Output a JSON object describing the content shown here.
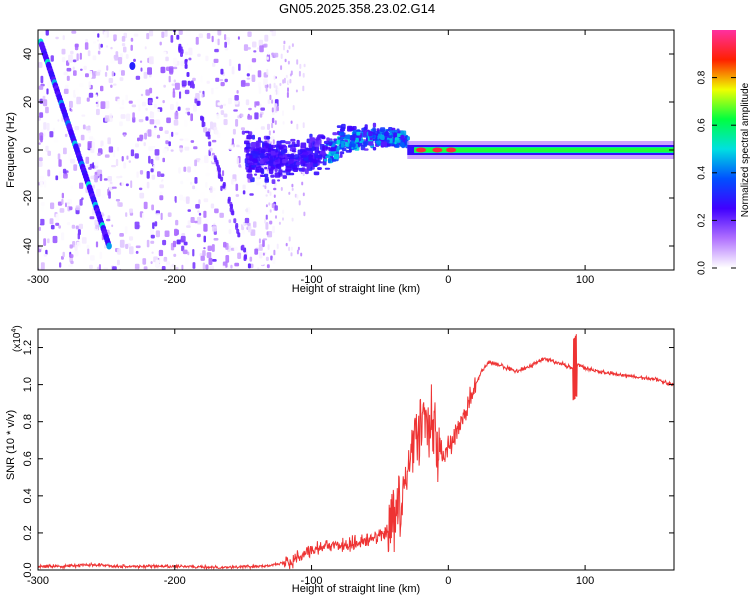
{
  "title": "GN05.2025.358.23.02.G14",
  "chart_data": [
    {
      "type": "heatmap",
      "name": "spectrogram",
      "xlabel": "Height of straight line (km)",
      "ylabel": "Frequency (Hz)",
      "xlim": [
        -300,
        165
      ],
      "ylim": [
        -50,
        50
      ],
      "x_ticks": [
        -300,
        -200,
        -100,
        0,
        100
      ],
      "x_tick_labels": [
        "-300",
        "-200",
        "-100",
        "0",
        "100"
      ],
      "y_ticks": [
        -40,
        -20,
        0,
        20,
        40
      ],
      "y_tick_labels": [
        "-40",
        "-20",
        "0",
        "20",
        "40"
      ],
      "colorbar": {
        "label": "Normalized spectral amplitude",
        "range": [
          0,
          1
        ],
        "ticks": [
          0.0,
          0.2,
          0.4,
          0.6,
          0.8
        ],
        "tick_labels": [
          "0.0",
          "0.2",
          "0.4",
          "0.6",
          "0.8"
        ],
        "colors": [
          "#ffffff",
          "#b070ff",
          "#4000ff",
          "#0050ff",
          "#00e0e0",
          "#00ff40",
          "#f0ff00",
          "#ff2000",
          "#ff30a0"
        ]
      },
      "features": {
        "noise_region_x": [
          -300,
          -130
        ],
        "diagonal_trace": {
          "from": [
            -298,
            45
          ],
          "to": [
            -248,
            -40
          ]
        },
        "faint_diagonal_trace": {
          "from": [
            -200,
            50
          ],
          "to": [
            -145,
            -50
          ]
        },
        "converging_band_x": [
          -150,
          -30
        ],
        "narrow_line_x": [
          -30,
          165
        ],
        "narrow_line_freq": 0
      }
    },
    {
      "type": "line",
      "name": "snr",
      "xlabel": "Height of straight line (km)",
      "ylabel": "SNR (10 * v/v)",
      "y_exponent_label": "(x10",
      "y_exponent": "4",
      "xlim": [
        -300,
        165
      ],
      "ylim": [
        0.0,
        1.3
      ],
      "x_ticks": [
        -300,
        -200,
        -100,
        0,
        100
      ],
      "x_tick_labels": [
        "-300",
        "-200",
        "-100",
        "0",
        "100"
      ],
      "y_ticks": [
        0.0,
        0.2,
        0.4,
        0.6,
        0.8,
        1.0,
        1.2
      ],
      "y_tick_labels": [
        "0.0",
        "0.2",
        "0.4",
        "0.6",
        "0.8",
        "1.0",
        "1.2"
      ],
      "color": "#ee3333",
      "series": [
        {
          "name": "SNR",
          "x": [
            -300,
            -280,
            -260,
            -240,
            -220,
            -200,
            -180,
            -160,
            -140,
            -125,
            -115,
            -105,
            -95,
            -85,
            -75,
            -65,
            -55,
            -45,
            -38,
            -33,
            -28,
            -24,
            -20,
            -16,
            -12,
            -8,
            -4,
            0,
            5,
            10,
            15,
            20,
            25,
            30,
            40,
            50,
            60,
            70,
            80,
            88,
            92,
            95,
            100,
            110,
            120,
            130,
            140,
            150,
            160,
            165
          ],
          "y": [
            0.02,
            0.02,
            0.03,
            0.02,
            0.02,
            0.02,
            0.015,
            0.015,
            0.02,
            0.03,
            0.05,
            0.1,
            0.12,
            0.13,
            0.14,
            0.15,
            0.17,
            0.2,
            0.28,
            0.4,
            0.58,
            0.72,
            0.8,
            0.78,
            0.75,
            0.66,
            0.6,
            0.65,
            0.72,
            0.8,
            0.9,
            1.0,
            1.08,
            1.12,
            1.1,
            1.07,
            1.1,
            1.14,
            1.12,
            1.1,
            1.08,
            1.11,
            1.09,
            1.07,
            1.06,
            1.05,
            1.04,
            1.03,
            1.01,
            1.0
          ]
        }
      ]
    }
  ]
}
